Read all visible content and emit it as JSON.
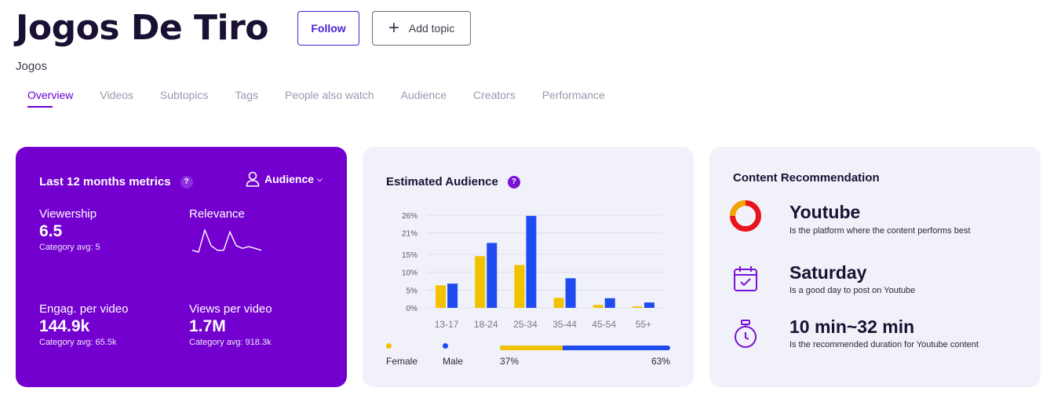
{
  "page": {
    "title": "Jogos De Tiro",
    "subtitle": "Jogos",
    "follow_label": "Follow",
    "add_topic_label": "Add topic"
  },
  "tabs": [
    "Overview",
    "Videos",
    "Subtopics",
    "Tags",
    "People also watch",
    "Audience",
    "Creators",
    "Performance"
  ],
  "metrics_card": {
    "title": "Last 12 months metrics",
    "help": "?",
    "audience_dropdown": "Audience",
    "viewership": {
      "label": "Viewership",
      "value": "6.5",
      "avg": "Category avg: 5"
    },
    "relevance": {
      "label": "Relevance"
    },
    "engagement": {
      "label": "Engag. per video",
      "value": "144.9k",
      "avg": "Category avg: 65.5k"
    },
    "views": {
      "label": "Views per video",
      "value": "1.7M",
      "avg": "Category avg: 918.3k"
    }
  },
  "relevance_sparkline": [
    40,
    38,
    62,
    45,
    40,
    40,
    60,
    45,
    42,
    44,
    42,
    40
  ],
  "audience_card": {
    "title": "Estimated Audience",
    "help": "?",
    "female_label": "Female",
    "male_label": "Male",
    "female_pct": "37%",
    "male_pct": "63%",
    "female_share": 0.37
  },
  "chart_data": {
    "type": "bar",
    "categories": [
      "13-17",
      "18-24",
      "25-34",
      "35-44",
      "45-54",
      "55+"
    ],
    "yticks": [
      "0%",
      "5%",
      "10%",
      "15%",
      "21%",
      "26%"
    ],
    "ylim": [
      0,
      26
    ],
    "series": [
      {
        "name": "Female",
        "color": "#f2c200",
        "values": [
          6.3,
          14.5,
          12,
          2.8,
          0.8,
          0.4
        ]
      },
      {
        "name": "Male",
        "color": "#1f4cf0",
        "values": [
          6.8,
          18.2,
          25.8,
          8.3,
          2.7,
          1.5
        ]
      }
    ]
  },
  "recommendation_card": {
    "title": "Content Recommendation",
    "items": [
      {
        "title": "Youtube",
        "desc": "Is the platform where the content performs best"
      },
      {
        "title": "Saturday",
        "desc": "Is a good day to post on Youtube"
      },
      {
        "title": "10 min~32 min",
        "desc": "Is the recommended duration for Youtube content"
      }
    ]
  },
  "colors": {
    "brand_purple": "#7300cf",
    "accent_purple": "#6a00d4",
    "female": "#f2c200",
    "male": "#1f4cf0",
    "youtube_red": "#e8141b"
  }
}
